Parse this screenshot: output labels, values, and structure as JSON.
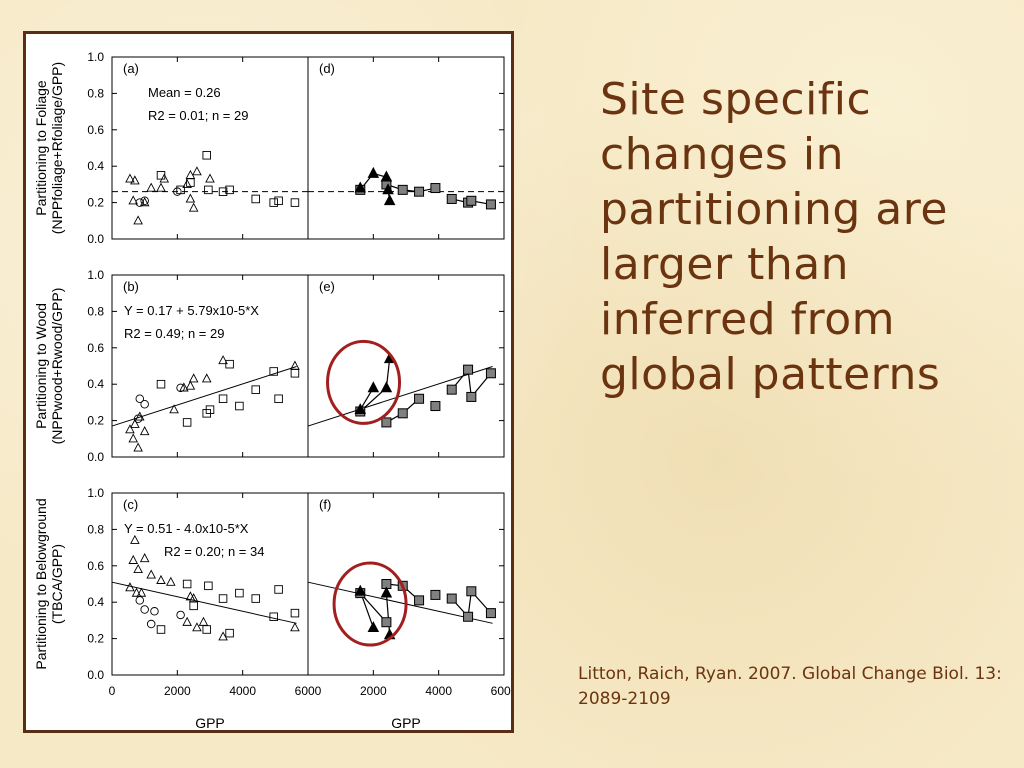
{
  "slide": {
    "title": "Site specific changes in partitioning are larger than inferred from global patterns",
    "citation": "Litton, Raich, Ryan. 2007. Global Change Biol. 13: 2089-2109"
  },
  "chart_data": {
    "type": "scatter",
    "xlabel": "GPP",
    "x_ticks": [
      "0",
      "2000",
      "4000",
      "6000"
    ],
    "xlim": [
      0,
      6000
    ],
    "y_ticks": [
      "0.0",
      "0.2",
      "0.4",
      "0.6",
      "0.8",
      "1.0"
    ],
    "ylim": [
      0,
      1.0
    ],
    "rows": [
      {
        "ylabel_line1": "Partitioning to Foliage",
        "ylabel_line2": "(NPPfoliage+Rfoliage/GPP)",
        "left_panel": "(a)",
        "right_panel": "(d)",
        "stats": [
          "Mean = 0.26",
          "R2 = 0.01; n = 29"
        ],
        "fit": {
          "kind": "mean",
          "value": 0.26
        },
        "triangles": [
          [
            550,
            0.33
          ],
          [
            700,
            0.32
          ],
          [
            650,
            0.21
          ],
          [
            800,
            0.1
          ],
          [
            1000,
            0.2
          ],
          [
            1200,
            0.28
          ],
          [
            1500,
            0.28
          ],
          [
            1600,
            0.33
          ],
          [
            2400,
            0.35
          ],
          [
            2300,
            0.3
          ],
          [
            2400,
            0.22
          ],
          [
            2500,
            0.17
          ],
          [
            2600,
            0.37
          ],
          [
            3000,
            0.33
          ]
        ],
        "circles": [
          [
            850,
            0.2
          ],
          [
            1000,
            0.21
          ],
          [
            2000,
            0.26
          ]
        ],
        "squares": [
          [
            1500,
            0.35
          ],
          [
            2100,
            0.27
          ],
          [
            2400,
            0.31
          ],
          [
            2900,
            0.46
          ],
          [
            2950,
            0.27
          ],
          [
            3400,
            0.26
          ],
          [
            3600,
            0.27
          ],
          [
            4400,
            0.22
          ],
          [
            4950,
            0.2
          ],
          [
            5100,
            0.21
          ],
          [
            5600,
            0.2
          ]
        ],
        "site_triangles": [
          [
            1600,
            0.28
          ],
          [
            2000,
            0.36
          ],
          [
            2400,
            0.34
          ],
          [
            2450,
            0.27
          ],
          [
            2500,
            0.21
          ]
        ],
        "site_squares": [
          [
            1600,
            0.27
          ],
          [
            2400,
            0.3
          ],
          [
            2900,
            0.27
          ],
          [
            3400,
            0.26
          ],
          [
            3900,
            0.28
          ],
          [
            4400,
            0.22
          ],
          [
            4900,
            0.2
          ],
          [
            5000,
            0.21
          ],
          [
            5600,
            0.19
          ]
        ],
        "site_lines": [
          [
            [
              1600,
              0.27
            ],
            [
              2000,
              0.36
            ],
            [
              2400,
              0.34
            ]
          ],
          [
            [
              2400,
              0.3
            ],
            [
              2900,
              0.27
            ],
            [
              3400,
              0.26
            ],
            [
              3900,
              0.28
            ]
          ],
          [
            [
              4400,
              0.22
            ],
            [
              4900,
              0.2
            ],
            [
              5000,
              0.21
            ],
            [
              5600,
              0.19
            ]
          ],
          [
            [
              2450,
              0.27
            ],
            [
              2500,
              0.21
            ]
          ]
        ],
        "circle_highlight": null
      },
      {
        "ylabel_line1": "Partitioning to Wood",
        "ylabel_line2": "(NPPwood+Rwood/GPP)",
        "left_panel": "(b)",
        "right_panel": "(e)",
        "stats": [
          "Y = 0.17 + 5.79x10-5*X",
          "R2 = 0.49; n = 29"
        ],
        "fit": {
          "kind": "line",
          "intercept": 0.17,
          "slope": 5.79e-05
        },
        "triangles": [
          [
            550,
            0.15
          ],
          [
            650,
            0.1
          ],
          [
            700,
            0.18
          ],
          [
            800,
            0.05
          ],
          [
            850,
            0.22
          ],
          [
            1000,
            0.14
          ],
          [
            1900,
            0.26
          ],
          [
            2200,
            0.38
          ],
          [
            2400,
            0.39
          ],
          [
            2500,
            0.43
          ],
          [
            2900,
            0.43
          ],
          [
            3400,
            0.53
          ],
          [
            5600,
            0.5
          ]
        ],
        "circles": [
          [
            800,
            0.21
          ],
          [
            850,
            0.32
          ],
          [
            1000,
            0.29
          ],
          [
            2100,
            0.38
          ]
        ],
        "squares": [
          [
            1500,
            0.4
          ],
          [
            2300,
            0.19
          ],
          [
            2900,
            0.24
          ],
          [
            3000,
            0.26
          ],
          [
            3400,
            0.32
          ],
          [
            3600,
            0.51
          ],
          [
            3900,
            0.28
          ],
          [
            4400,
            0.37
          ],
          [
            4950,
            0.47
          ],
          [
            5100,
            0.32
          ],
          [
            5600,
            0.46
          ]
        ],
        "site_triangles": [
          [
            1600,
            0.26
          ],
          [
            2000,
            0.38
          ],
          [
            2400,
            0.38
          ],
          [
            2500,
            0.54
          ]
        ],
        "site_squares": [
          [
            1600,
            0.25
          ],
          [
            2400,
            0.19
          ],
          [
            2900,
            0.24
          ],
          [
            3400,
            0.32
          ],
          [
            3900,
            0.28
          ],
          [
            4400,
            0.37
          ],
          [
            4900,
            0.48
          ],
          [
            5000,
            0.33
          ],
          [
            5600,
            0.46
          ]
        ],
        "site_lines": [
          [
            [
              1600,
              0.26
            ],
            [
              2000,
              0.38
            ]
          ],
          [
            [
              2400,
              0.38
            ],
            [
              2500,
              0.54
            ]
          ],
          [
            [
              1600,
              0.25
            ],
            [
              2400,
              0.38
            ]
          ],
          [
            [
              2400,
              0.19
            ],
            [
              2900,
              0.24
            ],
            [
              3400,
              0.32
            ]
          ],
          [
            [
              4400,
              0.37
            ],
            [
              4900,
              0.48
            ],
            [
              5000,
              0.33
            ],
            [
              5600,
              0.46
            ]
          ]
        ],
        "circle_highlight": [
          1700,
          0.41
        ]
      },
      {
        "ylabel_line1": "Partitioning to Belowground",
        "ylabel_line2": "(TBCA/GPP)",
        "left_panel": "(c)",
        "right_panel": "(f)",
        "stats": [
          "Y = 0.51 - 4.0x10-5*X",
          "R2 = 0.20; n = 34"
        ],
        "fit": {
          "kind": "line",
          "intercept": 0.51,
          "slope": -4e-05
        },
        "triangles": [
          [
            550,
            0.48
          ],
          [
            650,
            0.63
          ],
          [
            700,
            0.74
          ],
          [
            750,
            0.45
          ],
          [
            800,
            0.58
          ],
          [
            900,
            0.45
          ],
          [
            1000,
            0.64
          ],
          [
            1200,
            0.55
          ],
          [
            1500,
            0.52
          ],
          [
            1800,
            0.51
          ],
          [
            2300,
            0.29
          ],
          [
            2400,
            0.43
          ],
          [
            2500,
            0.42
          ],
          [
            2600,
            0.26
          ],
          [
            2800,
            0.29
          ],
          [
            3400,
            0.21
          ],
          [
            5600,
            0.26
          ]
        ],
        "circles": [
          [
            850,
            0.41
          ],
          [
            1000,
            0.36
          ],
          [
            1200,
            0.28
          ],
          [
            1300,
            0.35
          ],
          [
            2100,
            0.33
          ]
        ],
        "squares": [
          [
            1500,
            0.25
          ],
          [
            2300,
            0.5
          ],
          [
            2500,
            0.38
          ],
          [
            2900,
            0.25
          ],
          [
            2950,
            0.49
          ],
          [
            3400,
            0.42
          ],
          [
            3600,
            0.23
          ],
          [
            3900,
            0.45
          ],
          [
            4400,
            0.42
          ],
          [
            4950,
            0.32
          ],
          [
            5100,
            0.47
          ],
          [
            5600,
            0.34
          ]
        ],
        "site_triangles": [
          [
            1600,
            0.46
          ],
          [
            2000,
            0.26
          ],
          [
            2400,
            0.45
          ],
          [
            2500,
            0.22
          ]
        ],
        "site_squares": [
          [
            1600,
            0.45
          ],
          [
            2400,
            0.29
          ],
          [
            2400,
            0.5
          ],
          [
            2900,
            0.49
          ],
          [
            3400,
            0.41
          ],
          [
            3900,
            0.44
          ],
          [
            4400,
            0.42
          ],
          [
            4900,
            0.32
          ],
          [
            5000,
            0.46
          ],
          [
            5600,
            0.34
          ]
        ],
        "site_lines": [
          [
            [
              1600,
              0.46
            ],
            [
              2000,
              0.26
            ]
          ],
          [
            [
              2400,
              0.45
            ],
            [
              2500,
              0.22
            ]
          ],
          [
            [
              1600,
              0.45
            ],
            [
              2400,
              0.29
            ]
          ],
          [
            [
              2400,
              0.5
            ],
            [
              2900,
              0.49
            ],
            [
              3400,
              0.41
            ]
          ],
          [
            [
              4400,
              0.42
            ],
            [
              4900,
              0.32
            ],
            [
              5000,
              0.46
            ],
            [
              5600,
              0.34
            ]
          ]
        ],
        "circle_highlight": [
          1900,
          0.39
        ]
      }
    ]
  },
  "colors": {
    "frame": "#5a2e14",
    "title": "#6b3410",
    "highlight_circle": "#a11f1f",
    "filled_square": "#808080",
    "site_line": "#999999"
  }
}
